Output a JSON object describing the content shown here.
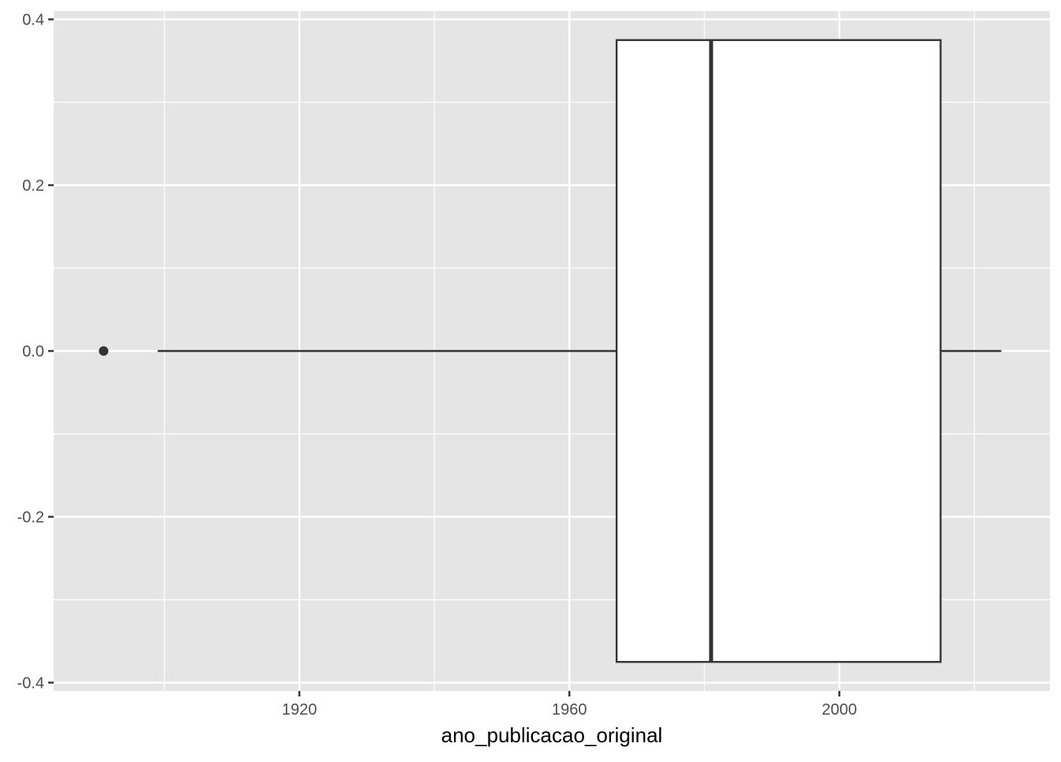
{
  "chart_data": {
    "type": "boxplot",
    "orientation": "horizontal",
    "xlabel": "ano_publicacao_original",
    "ylabel": "",
    "title": "",
    "x_ticks": [
      1920,
      1960,
      2000
    ],
    "y_ticks": [
      -0.4,
      -0.2,
      0.0,
      0.2,
      0.4
    ],
    "y_tick_labels": [
      "-0.4",
      "-0.2",
      "0.0",
      "0.2",
      "0.4"
    ],
    "xlim": [
      1883.6,
      2031.2
    ],
    "ylim": [
      -0.41,
      0.41
    ],
    "box": {
      "whisker_low": 1899,
      "q1": 1967,
      "median": 1981,
      "q3": 2015,
      "whisker_high": 2024,
      "outliers": [
        1891
      ],
      "y_center": 0.0,
      "y_half_width": 0.375
    },
    "grid": true,
    "colors": {
      "panel_background": "#e5e5e5",
      "grid": "#ffffff",
      "box_fill": "#ffffff",
      "box_stroke": "#333333",
      "tick_text": "#4d4d4d",
      "tick_mark": "#333333"
    }
  }
}
